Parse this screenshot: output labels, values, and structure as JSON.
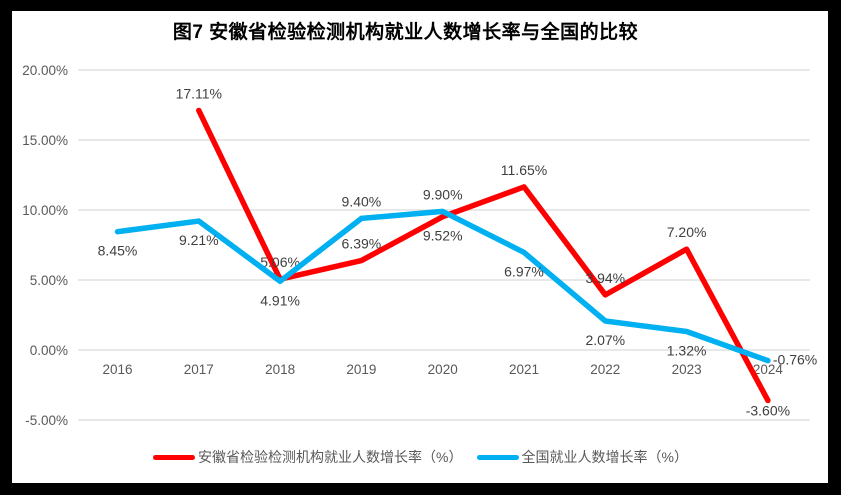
{
  "chart_data": {
    "type": "line",
    "title": "图7 安徽省检验检测机构就业人数增长率与全国的比较",
    "categories": [
      "2016",
      "2017",
      "2018",
      "2019",
      "2020",
      "2021",
      "2022",
      "2023",
      "2024"
    ],
    "y_ticks": [
      "20.00%",
      "15.00%",
      "10.00%",
      "5.00%",
      "0.00%",
      "-5.00%"
    ],
    "y_tick_values": [
      20,
      15,
      10,
      5,
      0,
      -5
    ],
    "ylim": [
      -5,
      20
    ],
    "grid": "horizontal",
    "legend_position": "bottom",
    "series": [
      {
        "name": "安徽省检验检测机构就业人数增长率（%）",
        "color": "#FF0000",
        "values": [
          null,
          17.11,
          5.06,
          6.39,
          9.52,
          11.65,
          3.94,
          7.2,
          -3.6
        ],
        "labels": [
          "",
          "17.11%",
          "5.06%",
          "6.39%",
          "9.52%",
          "11.65%",
          "3.94%",
          "7.20%",
          "-3.60%"
        ],
        "label_positions": [
          null,
          "above",
          "above",
          "above",
          "below",
          "above",
          "above",
          "above",
          "below-near"
        ]
      },
      {
        "name": "全国就业人数增长率（%）",
        "color": "#00B0F0",
        "values": [
          8.45,
          9.21,
          4.91,
          9.4,
          9.9,
          6.97,
          2.07,
          1.32,
          -0.76
        ],
        "labels": [
          "8.45%",
          "9.21%",
          "4.91%",
          "9.40%",
          "9.90%",
          "6.97%",
          "2.07%",
          "1.32%",
          "-0.76%"
        ],
        "label_positions": [
          "below",
          "below",
          "below",
          "above",
          "above",
          "below",
          "below",
          "below",
          "right"
        ]
      }
    ]
  },
  "colors": {
    "grid": "#E0E0E0",
    "axis_text": "#595959",
    "data_label_text": "#3F3F3F",
    "background": "#FFFFFF",
    "frame": "#000000"
  }
}
